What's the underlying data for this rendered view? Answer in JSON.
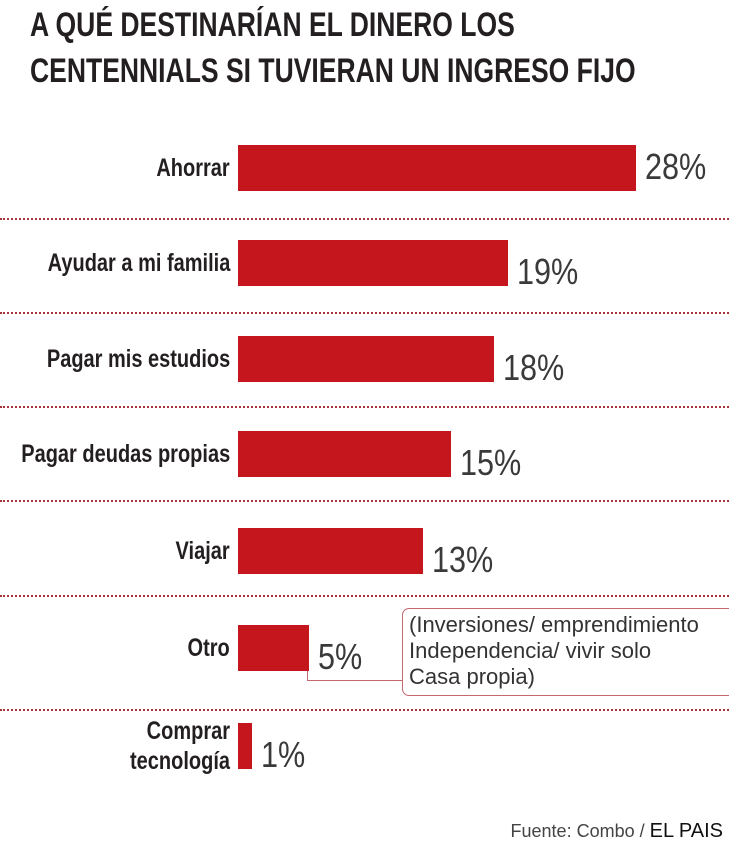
{
  "chart_data": {
    "type": "bar",
    "orientation": "horizontal",
    "title": "A QUÉ DESTINARÍAN EL DINERO LOS CENTENNIALS SI TUVIERAN UN INGRESO FIJO",
    "title_lines": [
      "A QUÉ DESTINARÍAN EL DINERO LOS",
      "CENTENNIALS SI TUVIERAN UN INGRESO FIJO"
    ],
    "categories": [
      "Ahorrar",
      "Ayudar a mi familia",
      "Pagar mis estudios",
      "Pagar deudas propias",
      "Viajar",
      "Otro",
      "Comprar tecnología"
    ],
    "category_lines": [
      [
        "Ahorrar"
      ],
      [
        "Ayudar a mi familia"
      ],
      [
        "Pagar mis estudios"
      ],
      [
        "Pagar deudas propias"
      ],
      [
        "Viajar"
      ],
      [
        "Otro"
      ],
      [
        "Comprar",
        "tecnología"
      ]
    ],
    "values": [
      28,
      19,
      18,
      15,
      13,
      5,
      1
    ],
    "labels": [
      "28%",
      "19%",
      "18%",
      "15%",
      "13%",
      "5%",
      "1%"
    ],
    "annotation_lines": [
      "(Inversiones/ emprendimiento",
      "Independencia/ vivir solo",
      "Casa propia)"
    ],
    "bar_color": "#c4161c",
    "grid": false
  },
  "source": {
    "prefix": "Fuente: Combo /",
    "brand": "EL PAIS"
  }
}
